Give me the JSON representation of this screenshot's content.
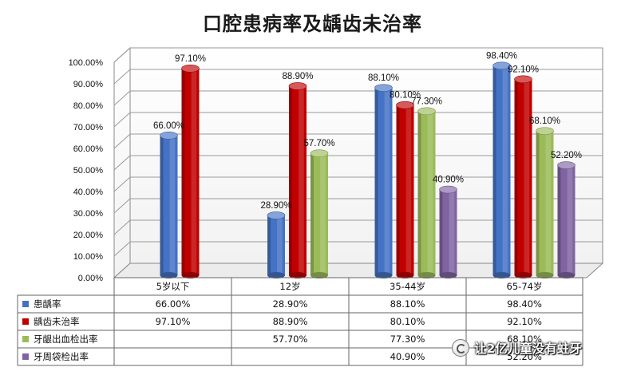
{
  "chart_data": {
    "type": "bar",
    "title": "口腔患病率及龋齿未治率",
    "categories": [
      "5岁以下",
      "12岁",
      "35-44岁",
      "65-74岁"
    ],
    "series": [
      {
        "name": "患龋率",
        "color": "#4472c4",
        "values": [
          66.0,
          28.9,
          88.1,
          98.4
        ],
        "labels": [
          "66.00%",
          "28.90%",
          "88.10%",
          "98.40%"
        ]
      },
      {
        "name": "龋齿未治率",
        "color": "#c00000",
        "values": [
          97.1,
          88.9,
          80.1,
          92.1
        ],
        "labels": [
          "97.10%",
          "88.90%",
          "80.10%",
          "92.10%"
        ]
      },
      {
        "name": "牙龈出血检出率",
        "color": "#9bbb59",
        "values": [
          null,
          57.7,
          77.3,
          68.1
        ],
        "labels": [
          "",
          "57.70%",
          "77.30%",
          "68.10%"
        ]
      },
      {
        "name": "牙周袋检出率",
        "color": "#8064a2",
        "values": [
          null,
          null,
          40.9,
          52.2
        ],
        "labels": [
          "",
          "",
          "40.90%",
          "52.20%"
        ]
      }
    ],
    "ylim": [
      0,
      100
    ],
    "yticks": [
      "0.00%",
      "10.00%",
      "20.00%",
      "30.00%",
      "40.00%",
      "50.00%",
      "60.00%",
      "70.00%",
      "80.00%",
      "90.00%",
      "100.00%"
    ],
    "grid": true,
    "data_table": true,
    "legend_placement": "data-table"
  },
  "watermark": "让2亿儿童没有蛀牙"
}
